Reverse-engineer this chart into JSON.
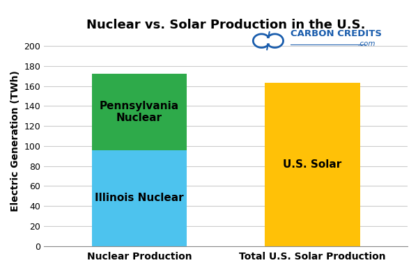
{
  "title": "Nuclear vs. Solar Production in the U.S.",
  "ylabel": "Electric Generation (TWh)",
  "categories": [
    "Nuclear Production",
    "Total U.S. Solar Production"
  ],
  "illinois_nuclear": 96,
  "pennsylvania_nuclear": 76,
  "us_solar": 163,
  "illinois_color": "#4DC3EE",
  "pennsylvania_color": "#2EAA4A",
  "solar_color": "#FFC107",
  "illinois_label": "Illinois Nuclear",
  "pennsylvania_label": "Pennsylvania\nNuclear",
  "solar_label": "U.S. Solar",
  "ylim": [
    0,
    210
  ],
  "yticks": [
    0,
    20,
    40,
    60,
    80,
    100,
    120,
    140,
    160,
    180,
    200
  ],
  "bar_width": 0.55,
  "background_color": "#FFFFFF",
  "grid_color": "#CCCCCC",
  "label_fontsize": 11,
  "title_fontsize": 13,
  "axis_label_fontsize": 10,
  "xtick_fontsize": 10,
  "ytick_fontsize": 9,
  "logo_text_color": "#1A5DAD",
  "logo_text": "CARBON CREDITS",
  "logo_subtext": ".com"
}
